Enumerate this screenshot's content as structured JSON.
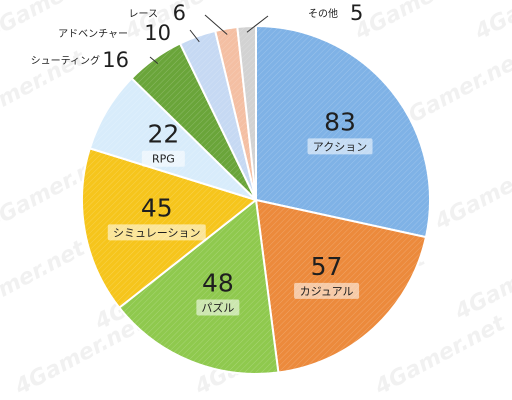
{
  "chart_data": {
    "type": "pie",
    "title": "",
    "slices": [
      {
        "label": "アクション",
        "value": 83,
        "color": "#7fb2e6"
      },
      {
        "label": "カジュアル",
        "value": 57,
        "color": "#ec8a3c"
      },
      {
        "label": "パズル",
        "value": 48,
        "color": "#8fc94e"
      },
      {
        "label": "シミュレーション",
        "value": 45,
        "color": "#f6c51c"
      },
      {
        "label": "RPG",
        "value": 22,
        "color": "#d8ecfb"
      },
      {
        "label": "シューティング",
        "value": 16,
        "color": "#6aa53a"
      },
      {
        "label": "アドベンチャー",
        "value": 10,
        "color": "#c6d9f3"
      },
      {
        "label": "レース",
        "value": 6,
        "color": "#f4bfa3"
      },
      {
        "label": "その他",
        "value": 5,
        "color": "#d2d2d2"
      }
    ],
    "start_angle": "12 o'clock",
    "direction": "clockwise",
    "legend": "none"
  },
  "watermark": "4Gamer.net"
}
